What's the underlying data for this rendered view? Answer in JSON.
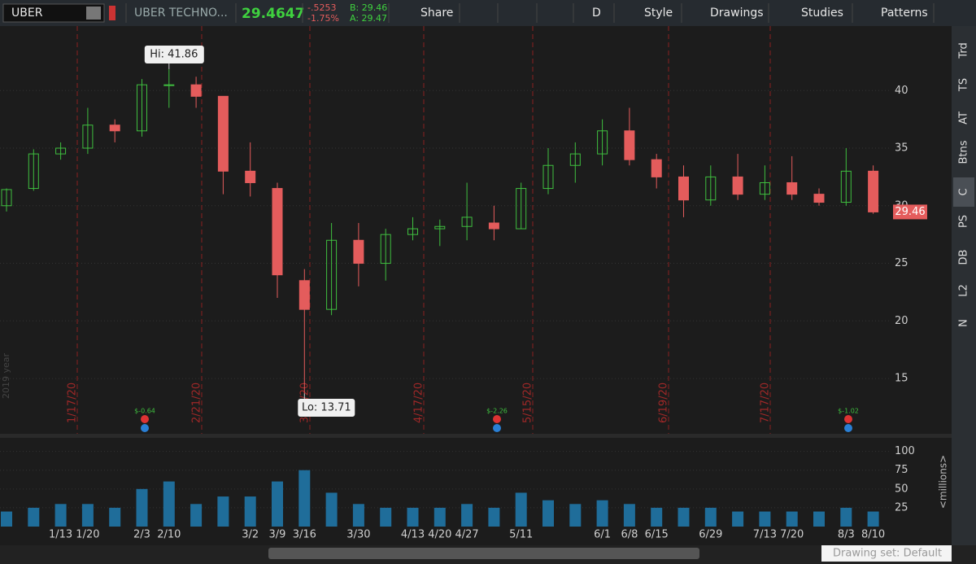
{
  "toolbar": {
    "symbol": "UBER",
    "company": "UBER TECHNO...",
    "last": "29.4647",
    "change": "-.5253",
    "change_pct": "-1.75%",
    "bid": "B: 29.46",
    "ask": "A: 29.47",
    "buttons": [
      "Share",
      "D",
      "Style",
      "Drawings",
      "Studies",
      "Patterns"
    ]
  },
  "side_tabs": [
    "Trd",
    "TS",
    "AT",
    "Btns",
    "C",
    "PS",
    "DB",
    "L2",
    "N"
  ],
  "footer": {
    "drawing_set": "Drawing set: Default"
  },
  "chart_data": {
    "type": "candlestick",
    "categories": [
      null,
      null,
      "1/13",
      "1/20",
      null,
      "2/3",
      "2/10",
      null,
      null,
      "3/2",
      "3/9",
      "3/16",
      null,
      "3/30",
      null,
      "4/13",
      "4/20",
      "4/27",
      null,
      "5/11",
      null,
      null,
      "6/1",
      "6/8",
      "6/15",
      null,
      "6/29",
      null,
      "7/13",
      "7/20",
      null,
      "8/3",
      "8/10"
    ],
    "ohlc": [
      [
        30.0,
        31.5,
        29.5,
        31.4
      ],
      [
        31.5,
        34.9,
        31.3,
        34.5
      ],
      [
        34.5,
        35.5,
        34.0,
        35.0
      ],
      [
        35.0,
        38.5,
        34.5,
        37.0
      ],
      [
        37.0,
        37.5,
        35.5,
        36.5
      ],
      [
        36.5,
        41.0,
        36.0,
        40.5
      ],
      [
        40.5,
        41.86,
        38.5,
        40.5
      ],
      [
        40.5,
        41.2,
        38.5,
        39.5
      ],
      [
        39.5,
        39.5,
        31.0,
        33.0
      ],
      [
        33.0,
        35.5,
        30.8,
        32.0
      ],
      [
        31.5,
        32.0,
        22.0,
        24.0
      ],
      [
        23.5,
        24.5,
        13.71,
        21.0
      ],
      [
        21.0,
        28.5,
        20.5,
        27.0
      ],
      [
        27.0,
        28.5,
        23.0,
        25.0
      ],
      [
        25.0,
        28.0,
        23.5,
        27.5
      ],
      [
        27.5,
        29.0,
        27.0,
        28.0
      ],
      [
        28.0,
        28.8,
        26.5,
        28.2
      ],
      [
        28.2,
        32.0,
        27.0,
        29.0
      ],
      [
        28.5,
        30.0,
        27.0,
        28.0
      ],
      [
        28.0,
        32.0,
        28.0,
        31.5
      ],
      [
        31.5,
        35.0,
        31.0,
        33.5
      ],
      [
        33.5,
        35.5,
        32.0,
        34.5
      ],
      [
        34.5,
        37.5,
        33.5,
        36.5
      ],
      [
        36.5,
        38.5,
        33.5,
        34.0
      ],
      [
        34.0,
        34.5,
        31.5,
        32.5
      ],
      [
        32.5,
        33.5,
        29.0,
        30.5
      ],
      [
        30.5,
        33.5,
        30.0,
        32.5
      ],
      [
        32.5,
        34.5,
        30.5,
        31.0
      ],
      [
        31.0,
        33.5,
        30.5,
        32.0
      ],
      [
        32.0,
        34.3,
        30.5,
        31.0
      ],
      [
        31.0,
        31.5,
        30.0,
        30.3
      ],
      [
        30.3,
        35.0,
        30.0,
        33.0
      ],
      [
        33.0,
        33.5,
        29.3,
        29.46
      ]
    ],
    "up_color": "#3fbf3f",
    "down_color": "#e45c5c",
    "ylim": [
      10.2,
      45.6
    ],
    "yticks": [
      15,
      20,
      25,
      30,
      35,
      40
    ],
    "grid": true,
    "annotations": {
      "high": "Hi: 41.86",
      "low": "Lo: 13.71"
    },
    "expirations": [
      "1/17/20",
      "2/21/20",
      "3/20/20",
      "4/17/20",
      "5/15/20",
      "6/19/20",
      "7/17/20"
    ],
    "earnings": [
      "$-0.64",
      "$-2.26",
      "$-1.02"
    ],
    "watermark": "2019 year",
    "volume": {
      "label": "<millions>",
      "ylim": [
        0,
        118
      ],
      "yticks": [
        25,
        50,
        75,
        100
      ],
      "color": "#1f6d9a",
      "values": [
        20,
        25,
        30,
        30,
        25,
        50,
        60,
        30,
        40,
        40,
        60,
        75,
        45,
        30,
        25,
        25,
        25,
        30,
        25,
        45,
        35,
        30,
        35,
        30,
        25,
        25,
        25,
        20,
        20,
        20,
        20,
        25,
        20
      ]
    }
  }
}
